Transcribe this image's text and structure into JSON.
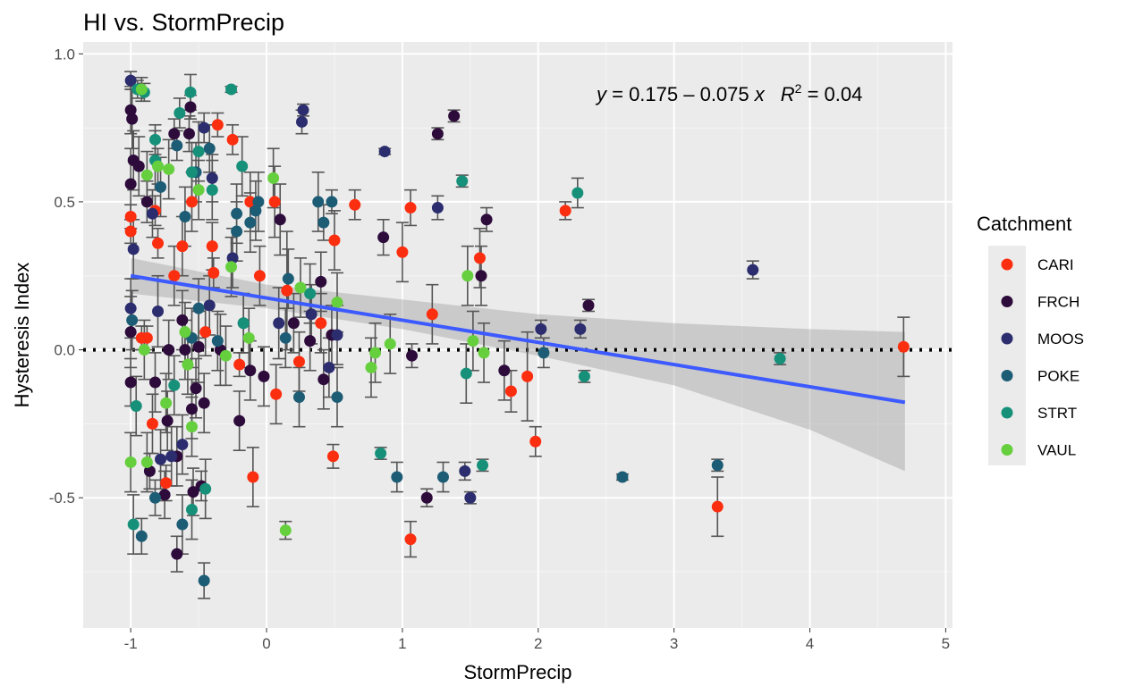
{
  "chart_data": {
    "type": "scatter",
    "title": "HI vs. StormPrecip",
    "xlabel": "StormPrecip",
    "ylabel": "Hysteresis Index",
    "xlim": [
      -1.35,
      5.05
    ],
    "ylim": [
      -0.94,
      1.04
    ],
    "x_ticks": [
      -1,
      0,
      1,
      2,
      3,
      4,
      5
    ],
    "x_tick_labels": [
      "-1",
      "0",
      "1",
      "2",
      "3",
      "4",
      "5"
    ],
    "y_ticks": [
      -0.5,
      0.0,
      0.5,
      1.0
    ],
    "y_tick_labels": [
      "-0.5",
      "0.0",
      "0.5",
      "1.0"
    ],
    "grid": true,
    "legend_placement": "right",
    "legend_title": "Catchment",
    "reference_line": {
      "y": 0,
      "style": "dotted"
    },
    "equation": {
      "lhs": "y",
      "rhs": " = 0.175 – 0.075 ",
      "x": "x",
      "r2_label": "R",
      "r2_sup": "2",
      "r2_value": " = 0.04"
    },
    "fit": {
      "x_range": [
        -1,
        4.7
      ],
      "intercept": 0.175,
      "slope": -0.075,
      "color": "#3d5afe",
      "band_lower": [
        [
          -1,
          0.19
        ],
        [
          0,
          0.14
        ],
        [
          1,
          0.07
        ],
        [
          2,
          -0.02
        ],
        [
          3,
          -0.12
        ],
        [
          4,
          -0.27
        ],
        [
          4.7,
          -0.41
        ]
      ],
      "band_upper": [
        [
          -1,
          0.31
        ],
        [
          0,
          0.22
        ],
        [
          1,
          0.17
        ],
        [
          2,
          0.12
        ],
        [
          3,
          0.09
        ],
        [
          4,
          0.07
        ],
        [
          4.7,
          0.06
        ]
      ]
    },
    "series": [
      {
        "name": "CARI",
        "color": "#fc2e10",
        "points": [
          [
            -1.0,
            0.45,
            0.04
          ],
          [
            -1.0,
            0.4,
            0.04
          ],
          [
            -0.92,
            0.04,
            0.04
          ],
          [
            -0.88,
            0.04,
            0.04
          ],
          [
            -0.82,
            0.47,
            0.05
          ],
          [
            -0.8,
            0.36,
            0.05
          ],
          [
            -0.84,
            -0.25,
            0.1
          ],
          [
            -0.74,
            -0.45,
            0.06
          ],
          [
            -0.68,
            0.25,
            0.1
          ],
          [
            -0.62,
            0.35,
            0.1
          ],
          [
            -0.55,
            0.5,
            0.1
          ],
          [
            -0.45,
            0.06,
            0.08
          ],
          [
            -0.4,
            0.35,
            0.08
          ],
          [
            -0.39,
            0.26,
            0.05
          ],
          [
            -0.36,
            0.76,
            0.04
          ],
          [
            -0.25,
            0.71,
            0.05
          ],
          [
            -0.2,
            -0.05,
            0.04
          ],
          [
            -0.12,
            0.5,
            0.1
          ],
          [
            -0.1,
            -0.43,
            0.1
          ],
          [
            -0.05,
            0.25,
            0.1
          ],
          [
            0.06,
            0.5,
            0.12
          ],
          [
            0.07,
            -0.15,
            0.1
          ],
          [
            0.15,
            0.2,
            0.2
          ],
          [
            0.24,
            -0.04,
            0.1
          ],
          [
            0.4,
            0.09,
            0.1
          ],
          [
            0.49,
            -0.36,
            0.04
          ],
          [
            0.5,
            0.37,
            0.1
          ],
          [
            0.65,
            0.49,
            0.05
          ],
          [
            1.0,
            0.33,
            0.1
          ],
          [
            1.06,
            0.48,
            0.06
          ],
          [
            1.06,
            -0.64,
            0.06
          ],
          [
            1.22,
            0.12,
            0.1
          ],
          [
            1.57,
            0.31,
            0.1
          ],
          [
            1.8,
            -0.14,
            0.07
          ],
          [
            1.92,
            -0.09,
            0.15
          ],
          [
            1.98,
            -0.31,
            0.05
          ],
          [
            2.2,
            0.47,
            0.03
          ],
          [
            3.32,
            -0.53,
            0.1
          ],
          [
            4.69,
            0.01,
            0.1
          ]
        ]
      },
      {
        "name": "FRCH",
        "color": "#2d0b3b",
        "points": [
          [
            -1.0,
            0.81,
            0.08
          ],
          [
            -0.99,
            0.78,
            0.1
          ],
          [
            -1.0,
            0.56,
            0.12
          ],
          [
            -0.98,
            0.64,
            0.1
          ],
          [
            -1.0,
            0.06,
            0.12
          ],
          [
            -1.0,
            -0.11,
            0.08
          ],
          [
            -0.94,
            0.62,
            0.1
          ],
          [
            -0.88,
            0.5,
            0.07
          ],
          [
            -0.86,
            -0.41,
            0.06
          ],
          [
            -0.82,
            -0.11,
            0.1
          ],
          [
            -0.75,
            -0.49,
            0.08
          ],
          [
            -0.73,
            -0.24,
            0.1
          ],
          [
            -0.72,
            0.0,
            0.1
          ],
          [
            -0.68,
            0.73,
            0.05
          ],
          [
            -0.66,
            -0.36,
            0.1
          ],
          [
            -0.66,
            -0.69,
            0.06
          ],
          [
            -0.62,
            0.1,
            0.1
          ],
          [
            -0.6,
            0.0,
            0.1
          ],
          [
            -0.57,
            0.73,
            0.06
          ],
          [
            -0.56,
            0.82,
            0.04
          ],
          [
            -0.55,
            -0.2,
            0.1
          ],
          [
            -0.54,
            -0.48,
            0.08
          ],
          [
            -0.52,
            -0.13,
            0.1
          ],
          [
            -0.5,
            0.01,
            0.12
          ],
          [
            -0.48,
            -0.46,
            0.05
          ],
          [
            -0.46,
            -0.18,
            0.1
          ],
          [
            -0.34,
            0.0,
            0.12
          ],
          [
            -0.2,
            -0.24,
            0.1
          ],
          [
            -0.12,
            -0.07,
            0.1
          ],
          [
            -0.02,
            -0.09,
            0.1
          ],
          [
            0.1,
            0.44,
            0.12
          ],
          [
            0.2,
            0.09,
            0.1
          ],
          [
            0.32,
            0.03,
            0.1
          ],
          [
            0.48,
            0.05,
            0.1
          ],
          [
            0.42,
            -0.1,
            0.1
          ],
          [
            0.4,
            0.23,
            0.1
          ],
          [
            0.86,
            0.38,
            0.06
          ],
          [
            1.07,
            -0.02,
            0.04
          ],
          [
            1.18,
            -0.5,
            0.03
          ],
          [
            1.26,
            0.73,
            0.02
          ],
          [
            1.38,
            0.79,
            0.02
          ],
          [
            1.58,
            0.25,
            0.1
          ],
          [
            1.62,
            0.44,
            0.04
          ],
          [
            1.75,
            -0.07,
            0.1
          ],
          [
            2.37,
            0.15,
            0.02
          ]
        ]
      },
      {
        "name": "MOOS",
        "color": "#2c2d6e",
        "points": [
          [
            -1.0,
            0.91,
            0.03
          ],
          [
            -0.98,
            0.34,
            0.1
          ],
          [
            -1.0,
            0.14,
            0.1
          ],
          [
            -0.84,
            0.46,
            0.08
          ],
          [
            -0.8,
            0.13,
            0.12
          ],
          [
            -0.78,
            -0.37,
            0.1
          ],
          [
            -0.7,
            -0.36,
            0.1
          ],
          [
            -0.62,
            -0.32,
            0.1
          ],
          [
            -0.4,
            0.58,
            0.08
          ],
          [
            -0.46,
            0.75,
            0.05
          ],
          [
            -0.42,
            0.15,
            0.1
          ],
          [
            -0.25,
            0.31,
            0.1
          ],
          [
            0.09,
            0.09,
            0.12
          ],
          [
            0.26,
            0.77,
            0.04
          ],
          [
            0.27,
            0.81,
            0.02
          ],
          [
            0.33,
            0.12,
            0.1
          ],
          [
            0.46,
            -0.06,
            0.1
          ],
          [
            0.52,
            0.05,
            0.1
          ],
          [
            0.87,
            0.67,
            0.01
          ],
          [
            1.26,
            0.48,
            0.04
          ],
          [
            1.46,
            -0.41,
            0.03
          ],
          [
            1.5,
            -0.5,
            0.02
          ],
          [
            2.02,
            0.07,
            0.03
          ],
          [
            2.31,
            0.07,
            0.03
          ],
          [
            3.58,
            0.27,
            0.03
          ]
        ]
      },
      {
        "name": "POKE",
        "color": "#1d5c75",
        "points": [
          [
            -0.99,
            0.1,
            0.1
          ],
          [
            -0.92,
            -0.63,
            0.06
          ],
          [
            -0.82,
            -0.5,
            0.06
          ],
          [
            -0.78,
            0.55,
            0.1
          ],
          [
            -0.66,
            0.69,
            0.05
          ],
          [
            -0.62,
            -0.59,
            0.1
          ],
          [
            -0.6,
            0.45,
            0.1
          ],
          [
            -0.55,
            0.04,
            0.1
          ],
          [
            -0.52,
            0.6,
            0.1
          ],
          [
            -0.5,
            0.14,
            0.1
          ],
          [
            -0.46,
            -0.78,
            0.06
          ],
          [
            -0.42,
            0.68,
            0.08
          ],
          [
            -0.36,
            0.03,
            0.1
          ],
          [
            -0.22,
            0.4,
            0.1
          ],
          [
            -0.22,
            0.46,
            0.1
          ],
          [
            -0.17,
            0.09,
            0.1
          ],
          [
            -0.12,
            0.43,
            0.1
          ],
          [
            -0.06,
            0.5,
            0.1
          ],
          [
            -0.08,
            0.47,
            0.1
          ],
          [
            0.16,
            0.24,
            0.1
          ],
          [
            0.14,
            0.04,
            0.1
          ],
          [
            0.24,
            -0.16,
            0.1
          ],
          [
            0.38,
            0.5,
            0.1
          ],
          [
            0.42,
            0.43,
            0.06
          ],
          [
            0.48,
            0.5,
            0.04
          ],
          [
            0.52,
            -0.16,
            0.1
          ],
          [
            0.96,
            -0.43,
            0.05
          ],
          [
            1.3,
            -0.43,
            0.05
          ],
          [
            2.04,
            -0.01,
            0.05
          ],
          [
            2.62,
            -0.43,
            0.01
          ],
          [
            3.32,
            -0.39,
            0.02
          ]
        ]
      },
      {
        "name": "STRT",
        "color": "#17907a",
        "points": [
          [
            -0.95,
            0.88,
            0.03
          ],
          [
            -0.9,
            0.87,
            0.03
          ],
          [
            -0.98,
            -0.59,
            0.1
          ],
          [
            -0.96,
            -0.19,
            0.1
          ],
          [
            -0.82,
            0.71,
            0.05
          ],
          [
            -0.82,
            0.64,
            0.1
          ],
          [
            -0.68,
            -0.12,
            0.1
          ],
          [
            -0.64,
            0.8,
            0.05
          ],
          [
            -0.56,
            0.87,
            0.06
          ],
          [
            -0.55,
            -0.54,
            0.1
          ],
          [
            -0.55,
            0.6,
            0.1
          ],
          [
            -0.5,
            0.67,
            0.1
          ],
          [
            -0.45,
            -0.47,
            0.1
          ],
          [
            -0.4,
            0.54,
            0.1
          ],
          [
            -0.26,
            0.88,
            0.01
          ],
          [
            -0.18,
            0.62,
            0.1
          ],
          [
            -0.17,
            0.09,
            0.1
          ],
          [
            0.32,
            0.19,
            0.1
          ],
          [
            0.84,
            -0.35,
            0.02
          ],
          [
            1.44,
            0.57,
            0.02
          ],
          [
            1.47,
            -0.08,
            0.1
          ],
          [
            1.59,
            -0.39,
            0.02
          ],
          [
            2.29,
            0.53,
            0.05
          ],
          [
            2.34,
            -0.09,
            0.02
          ],
          [
            3.78,
            -0.03,
            0.02
          ]
        ]
      },
      {
        "name": "VAUL",
        "color": "#66cf3e",
        "points": [
          [
            -1.0,
            -0.38,
            0.1
          ],
          [
            -0.92,
            0.88,
            0.04
          ],
          [
            -0.9,
            0.0,
            0.1
          ],
          [
            -0.88,
            0.59,
            0.08
          ],
          [
            -0.88,
            -0.38,
            0.1
          ],
          [
            -0.8,
            0.62,
            0.06
          ],
          [
            -0.72,
            0.61,
            0.1
          ],
          [
            -0.74,
            -0.18,
            0.1
          ],
          [
            -0.6,
            0.06,
            0.1
          ],
          [
            -0.58,
            -0.05,
            0.1
          ],
          [
            -0.55,
            -0.26,
            0.1
          ],
          [
            -0.5,
            0.54,
            0.1
          ],
          [
            -0.3,
            -0.02,
            0.1
          ],
          [
            -0.26,
            0.28,
            0.1
          ],
          [
            -0.13,
            0.04,
            0.1
          ],
          [
            0.05,
            0.58,
            0.1
          ],
          [
            0.14,
            -0.61,
            0.03
          ],
          [
            0.25,
            0.21,
            0.1
          ],
          [
            0.52,
            0.16,
            0.1
          ],
          [
            0.77,
            -0.06,
            0.1
          ],
          [
            0.8,
            -0.01,
            0.1
          ],
          [
            0.91,
            0.02,
            0.1
          ],
          [
            1.48,
            0.25,
            0.1
          ],
          [
            1.52,
            0.03,
            0.1
          ],
          [
            1.6,
            -0.01,
            0.1
          ]
        ]
      }
    ]
  }
}
